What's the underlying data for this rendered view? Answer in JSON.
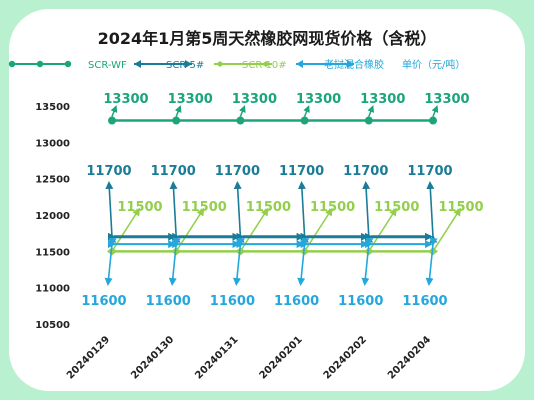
{
  "chart_data": {
    "type": "line",
    "title": "2024年1月第5周天然橡胶网现货价格（含税）",
    "categories": [
      "20240129",
      "20240130",
      "20240131",
      "20240201",
      "20240202",
      "20240204"
    ],
    "series": [
      {
        "name": "SCR-WF",
        "values": [
          13300,
          13300,
          13300,
          13300,
          13300,
          13300
        ],
        "color": "#1aa57a"
      },
      {
        "name": "SCR-5#",
        "values": [
          11700,
          11700,
          11700,
          11700,
          11700,
          11700
        ],
        "color": "#1a7c96"
      },
      {
        "name": "SCR-10#",
        "values": [
          11500,
          11500,
          11500,
          11500,
          11500,
          11500
        ],
        "color": "#93cf4d"
      },
      {
        "name": "老挝混合橡胶",
        "values": [
          11600,
          11600,
          11600,
          11600,
          11600,
          11600
        ],
        "color": "#24a7dc"
      }
    ],
    "unit_label": "单价（元/吨）",
    "yticks": [
      10500,
      11000,
      11500,
      12000,
      12500,
      13000,
      13500
    ],
    "ylim": [
      10500,
      13700
    ],
    "legend_position": "top",
    "grid": false
  }
}
